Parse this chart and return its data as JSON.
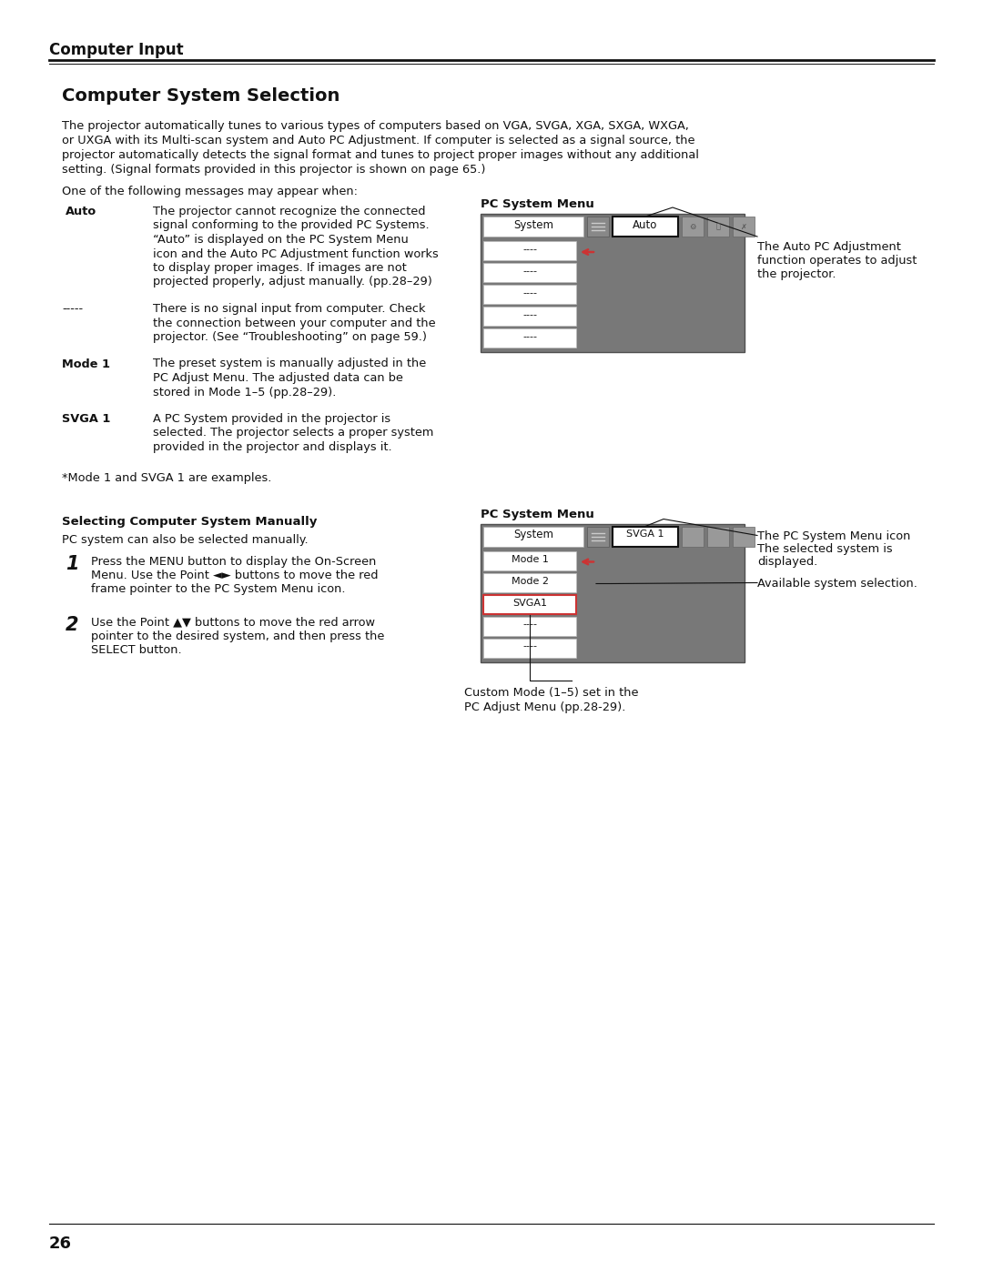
{
  "bg_color": "#ffffff",
  "page_width": 10.8,
  "page_height": 13.97,
  "header_title": "Computer Input",
  "section_title": "Computer System Selection",
  "intro_text": "The projector automatically tunes to various types of computers based on VGA, SVGA, XGA, SXGA, WXGA,\nor UXGA with its Multi-scan system and Auto PC Adjustment. If computer is selected as a signal source, the\nprojector automatically detects the signal format and tunes to project proper images without any additional\nsetting. (Signal formats provided in this projector is shown on page 65.)",
  "messages_intro": "One of the following messages may appear when:",
  "terms": [
    {
      "label": "Auto",
      "label_bold": true,
      "text": "The projector cannot recognize the connected\nsignal conforming to the provided PC Systems.\n“Auto” is displayed on the PC System Menu\nicon and the Auto PC Adjustment function works\nto display proper images. If images are not\nprojected properly, adjust manually. (pp.28–29)"
    },
    {
      "label": "-----",
      "label_bold": false,
      "text": "There is no signal input from computer. Check\nthe connection between your computer and the\nprojector. (See “Troubleshooting” on page 59.)"
    },
    {
      "label": "Mode 1",
      "label_bold": true,
      "text": "The preset system is manually adjusted in the\nPC Adjust Menu. The adjusted data can be\nstored in Mode 1–5 (pp.28–29)."
    },
    {
      "label": "SVGA 1",
      "label_bold": true,
      "text": "A PC System provided in the projector is\nselected. The projector selects a proper system\nprovided in the projector and displays it."
    }
  ],
  "footnote": "*Mode 1 and SVGA 1 are examples.",
  "pc_menu_title_1": "PC System Menu",
  "pc_menu_caption_1a": "The Auto PC Adjustment",
  "pc_menu_caption_1b": "function operates to adjust",
  "pc_menu_caption_1c": "the projector.",
  "pc_menu_title_2": "PC System Menu",
  "pc_menu_caption_2a": "The PC System Menu icon",
  "pc_menu_caption_2b": "The selected system is",
  "pc_menu_caption_2c": "displayed.",
  "pc_menu_caption_2d": "Available system selection.",
  "pc_menu_caption_bottom1": "Custom Mode (1–5) set in the",
  "pc_menu_caption_bottom2": "PC Adjust Menu (pp.28-29).",
  "selecting_title": "Selecting Computer System Manually",
  "selecting_intro": "PC system can also be selected manually.",
  "step1_num": "1",
  "step1_text": "Press the MENU button to display the On-Screen\nMenu. Use the Point ◄► buttons to move the red\nframe pointer to the PC System Menu icon.",
  "step2_num": "2",
  "step2_text": "Use the Point ▲▼ buttons to move the red arrow\npointer to the desired system, and then press the\nSELECT button.",
  "page_number": "26",
  "grey_color": "#787878",
  "dark_grey": "#606060",
  "icon_grey": "#909090",
  "row_border": "#aaaaaa",
  "arrow_color": "#cc3333"
}
